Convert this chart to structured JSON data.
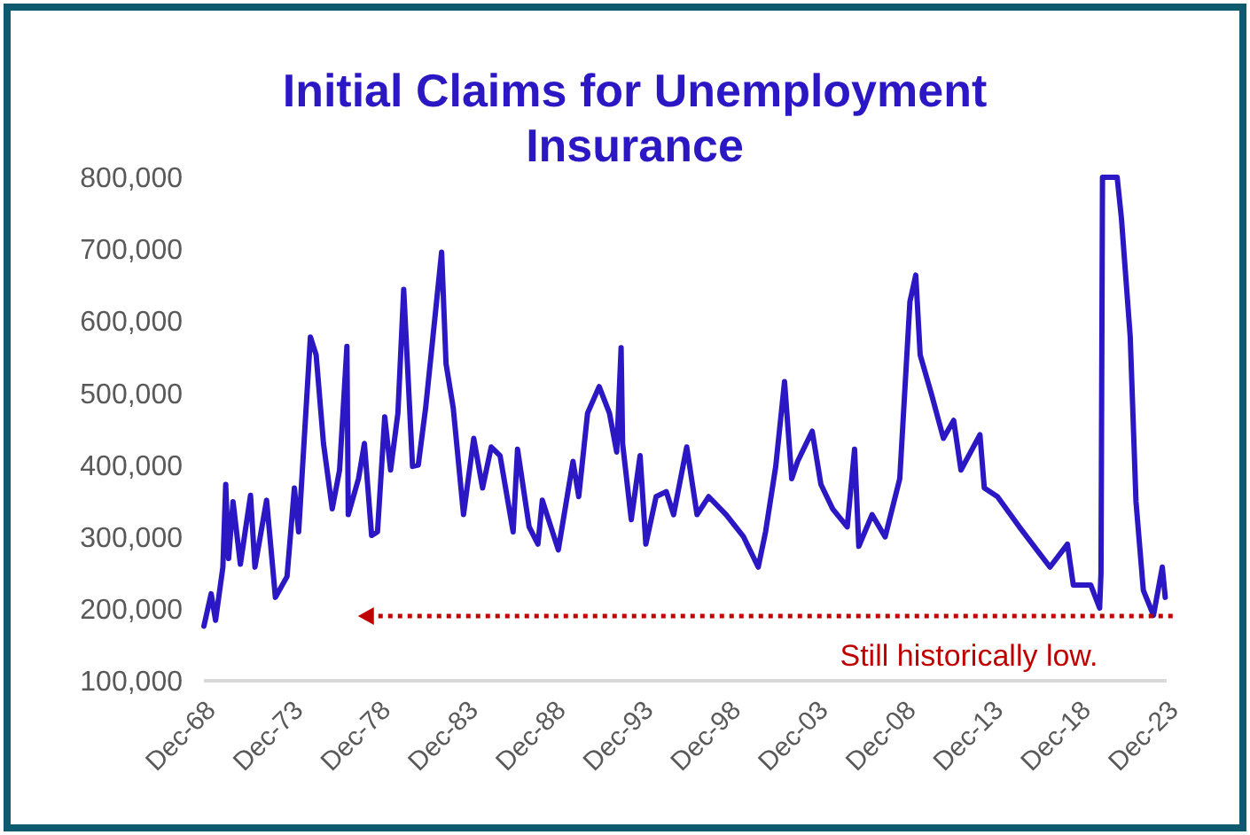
{
  "chart_data": {
    "type": "line",
    "title": "Initial Claims for Unemployment Insurance",
    "x": [
      "1968-12",
      "1969-05",
      "1969-08",
      "1970-01",
      "1970-03",
      "1970-05",
      "1970-08",
      "1971-01",
      "1971-08",
      "1971-11",
      "1972-07",
      "1973-01",
      "1973-09",
      "1974-02",
      "1974-05",
      "1975-01",
      "1975-05",
      "1975-10",
      "1976-04",
      "1976-09",
      "1977-02",
      "1977-03",
      "1977-10",
      "1978-02",
      "1978-07",
      "1978-11",
      "1979-04",
      "1979-08",
      "1980-01",
      "1980-05",
      "1980-11",
      "1981-03",
      "1981-08",
      "1982-01",
      "1982-07",
      "1982-10",
      "1983-03",
      "1983-10",
      "1984-05",
      "1984-11",
      "1985-05",
      "1985-11",
      "1986-08",
      "1986-11",
      "1987-07",
      "1988-01",
      "1988-04",
      "1989-03",
      "1990-01",
      "1990-05",
      "1990-11",
      "1991-07",
      "1992-02",
      "1992-07",
      "1992-10",
      "1992-11",
      "1993-05",
      "1993-11",
      "1994-03",
      "1994-10",
      "1995-05",
      "1995-10",
      "1996-07",
      "1997-02",
      "1997-10",
      "1998-10",
      "1999-10",
      "2000-08",
      "2001-01",
      "2001-08",
      "2002-02",
      "2002-07",
      "2002-11",
      "2003-09",
      "2004-03",
      "2004-11",
      "2005-09",
      "2006-02",
      "2006-05",
      "2007-02",
      "2007-11",
      "2008-09",
      "2009-04",
      "2009-08",
      "2009-11",
      "2010-07",
      "2011-03",
      "2011-10",
      "2012-03",
      "2013-04",
      "2013-07",
      "2014-04",
      "2015-07",
      "2016-07",
      "2017-04",
      "2018-04",
      "2018-08",
      "2019-08",
      "2020-02",
      "2020-03",
      "2020-04",
      "2021-02",
      "2021-05",
      "2021-11",
      "2022-03",
      "2022-08",
      "2023-03",
      "2023-09",
      "2023-11"
    ],
    "series": [
      {
        "color": "#2b18c4",
        "values": [
          176000,
          221000,
          184000,
          258000,
          373000,
          270000,
          349000,
          262000,
          358000,
          258000,
          351000,
          216000,
          245000,
          368000,
          307000,
          578000,
          553000,
          430000,
          339000,
          393000,
          565000,
          331000,
          381000,
          430000,
          302000,
          307000,
          467000,
          393000,
          472000,
          644000,
          398000,
          400000,
          479000,
          578000,
          696000,
          541000,
          479000,
          331000,
          437000,
          368000,
          425000,
          413000,
          307000,
          422000,
          314000,
          290000,
          351000,
          282000,
          405000,
          356000,
          472000,
          509000,
          472000,
          418000,
          563000,
          430000,
          324000,
          413000,
          290000,
          356000,
          363000,
          331000,
          425000,
          331000,
          356000,
          331000,
          300000,
          258000,
          307000,
          398000,
          516000,
          381000,
          405000,
          447000,
          373000,
          339000,
          314000,
          422000,
          287000,
          331000,
          300000,
          381000,
          627000,
          664000,
          553000,
          497000,
          437000,
          462000,
          393000,
          442000,
          368000,
          356000,
          314000,
          282000,
          258000,
          290000,
          233000,
          233000,
          201000,
          250000,
          800000,
          800000,
          743000,
          578000,
          349000,
          226000,
          191000,
          258000,
          216000
        ]
      }
    ],
    "xlim": [
      "1968-12",
      "2023-12"
    ],
    "xticks": [
      {
        "value": "1968-12",
        "label": "Dec-68"
      },
      {
        "value": "1973-12",
        "label": "Dec-73"
      },
      {
        "value": "1978-12",
        "label": "Dec-78"
      },
      {
        "value": "1983-12",
        "label": "Dec-83"
      },
      {
        "value": "1988-12",
        "label": "Dec-88"
      },
      {
        "value": "1993-12",
        "label": "Dec-93"
      },
      {
        "value": "1998-12",
        "label": "Dec-98"
      },
      {
        "value": "2003-12",
        "label": "Dec-03"
      },
      {
        "value": "2008-12",
        "label": "Dec-08"
      },
      {
        "value": "2013-12",
        "label": "Dec-13"
      },
      {
        "value": "2018-12",
        "label": "Dec-18"
      },
      {
        "value": "2023-12",
        "label": "Dec-23"
      }
    ],
    "ylim": [
      100000,
      800000
    ],
    "yticks": [
      {
        "value": 100000,
        "label": "100,000"
      },
      {
        "value": 200000,
        "label": "200,000"
      },
      {
        "value": 300000,
        "label": "300,000"
      },
      {
        "value": 400000,
        "label": "400,000"
      },
      {
        "value": 500000,
        "label": "500,000"
      },
      {
        "value": 600000,
        "label": "600,000"
      },
      {
        "value": 700000,
        "label": "700,000"
      },
      {
        "value": 800000,
        "label": "800,000"
      }
    ],
    "ref_lines": [
      {
        "axis": "y",
        "value": 190000,
        "label": "Still historically low.",
        "color": "#c00000",
        "line_style": "dotted"
      }
    ],
    "grid": false,
    "marker": "none",
    "line_style": "solid"
  }
}
